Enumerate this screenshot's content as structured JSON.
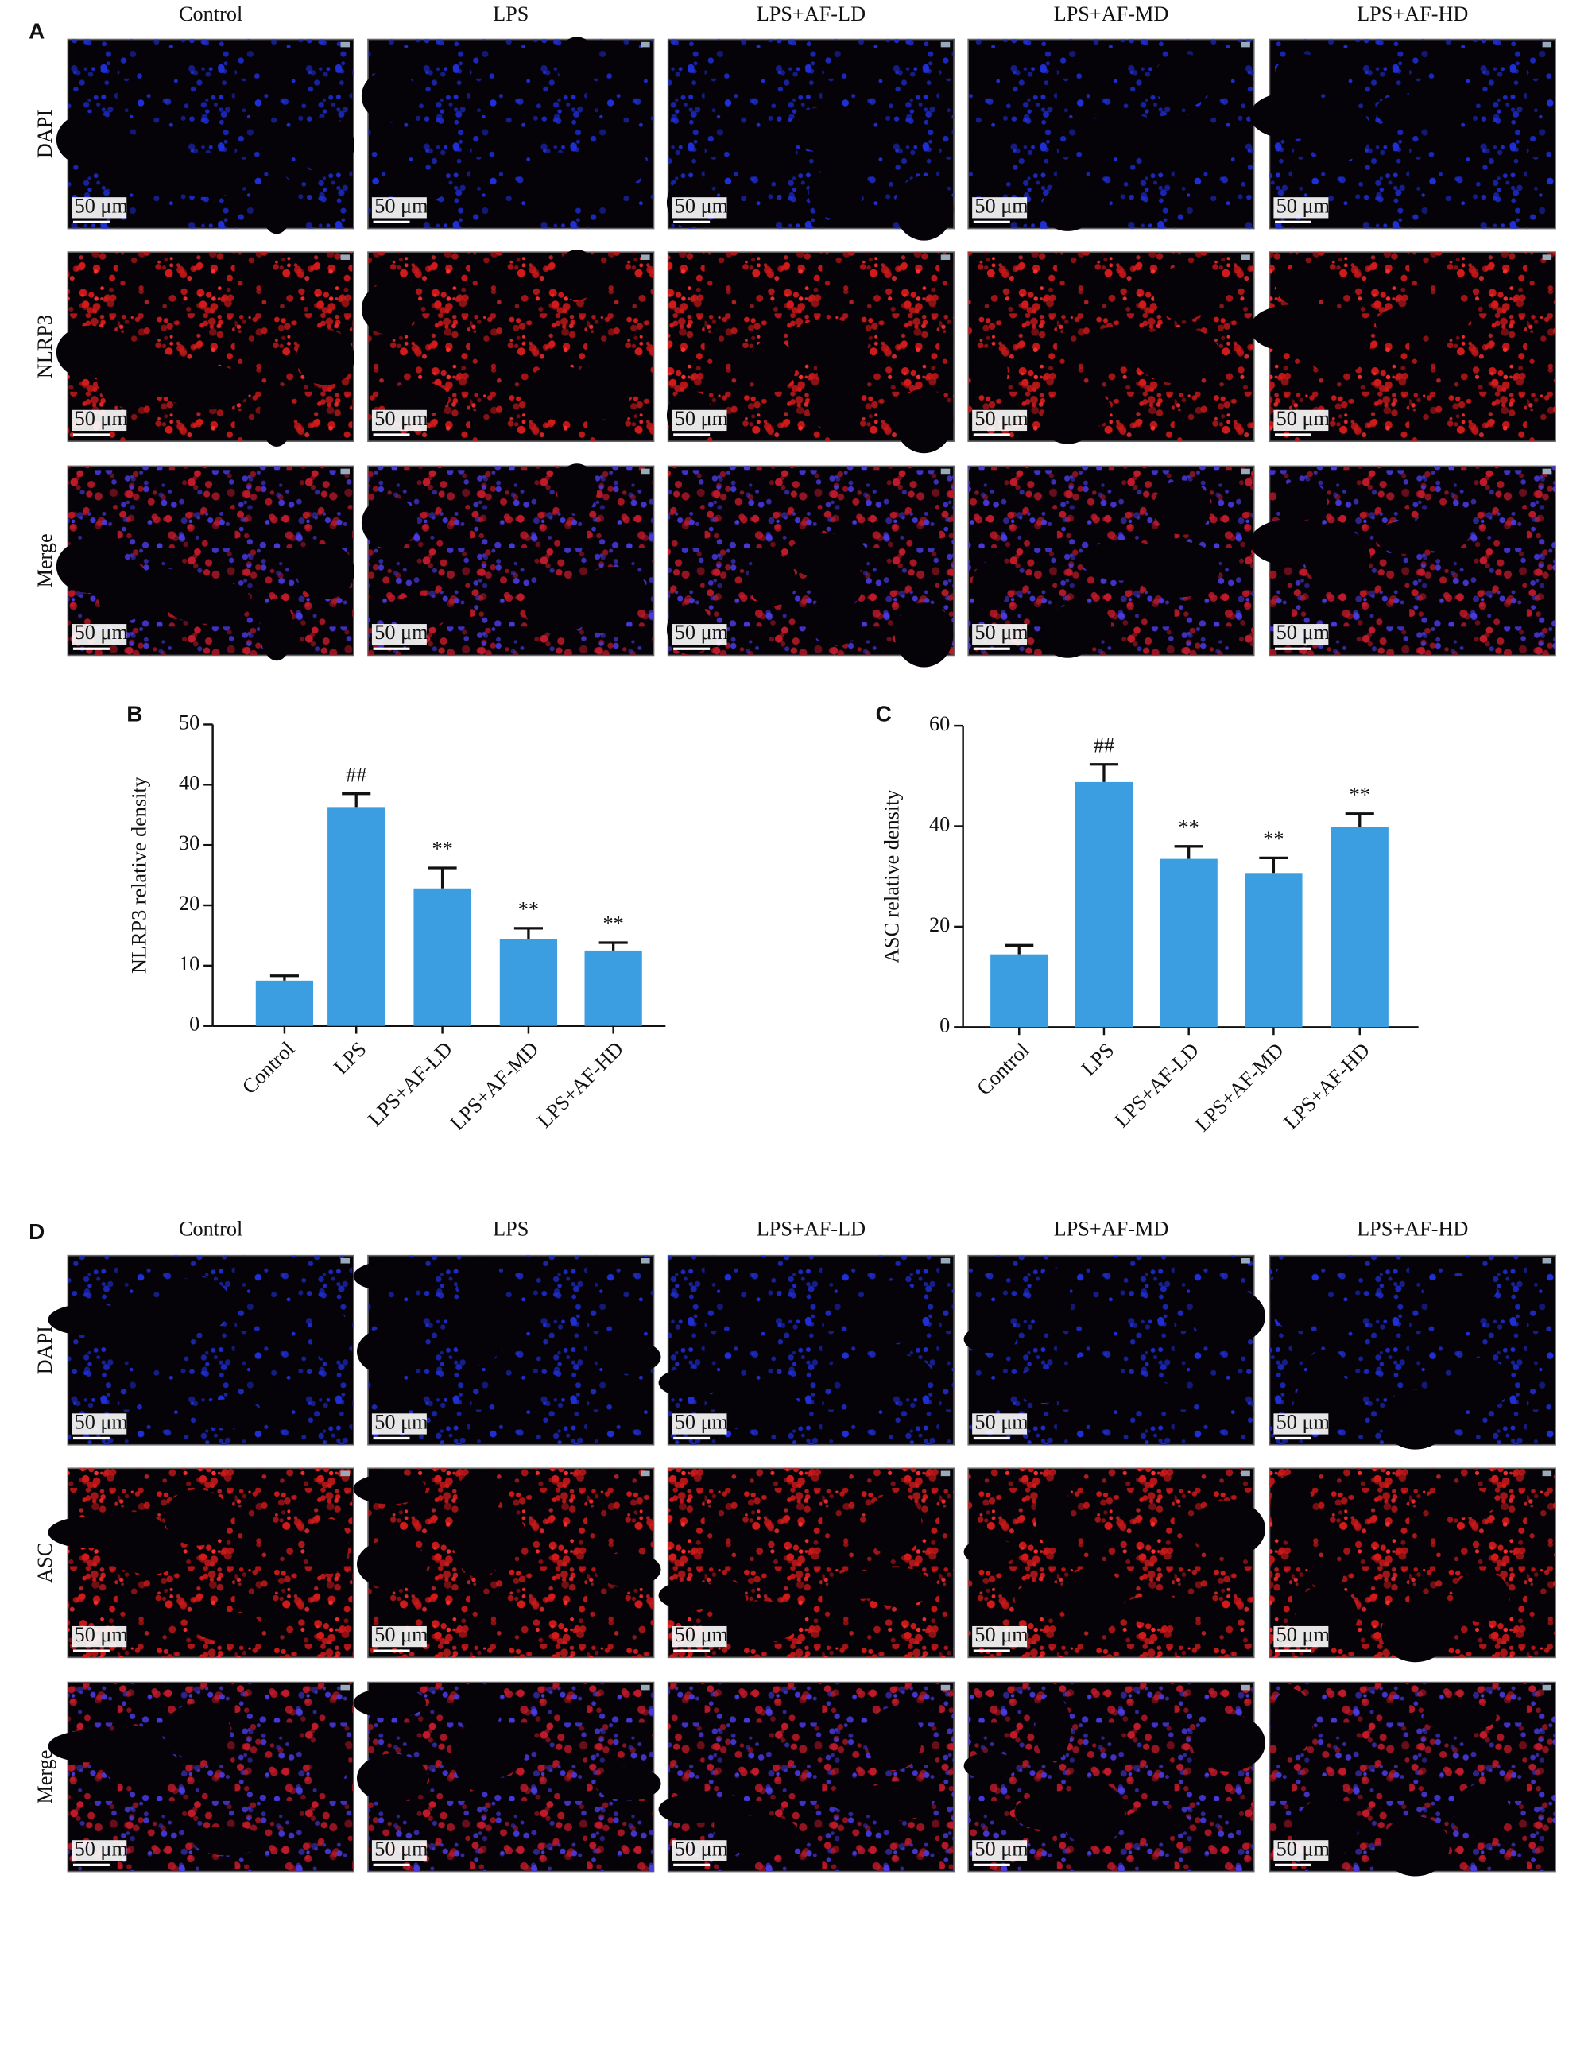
{
  "panels": [
    {
      "letter": "A",
      "columns": [
        "Control",
        "LPS",
        "LPS+AF-LD",
        "LPS+AF-MD",
        "LPS+AF-HD"
      ],
      "rows": [
        "DAPI",
        "NLRP3",
        "Merge"
      ]
    },
    {
      "letter": "D",
      "columns": [
        "Control",
        "LPS",
        "LPS+AF-LD",
        "LPS+AF-MD",
        "LPS+AF-HD"
      ],
      "rows": [
        "DAPI",
        "ASC",
        "Merge"
      ]
    }
  ],
  "scale_bar": "50 μm",
  "chart_data": [
    {
      "type": "bar",
      "letter": "B",
      "y_label": "NLRP3 relative density",
      "categories": [
        "Control",
        "LPS",
        "LPS+AF-LD",
        "LPS+AF-MD",
        "LPS+AF-HD"
      ],
      "values": [
        7.5,
        36.3,
        22.8,
        14.4,
        12.5
      ],
      "errors": [
        0.8,
        2.2,
        3.4,
        1.8,
        1.3
      ],
      "annotations": [
        null,
        "##",
        "**",
        "**",
        "**"
      ],
      "color": "#3a9ee0",
      "ylim": [
        0,
        50
      ],
      "yticks": [
        0,
        10,
        20,
        30,
        40,
        50
      ]
    },
    {
      "type": "bar",
      "letter": "C",
      "y_label": "ASC relative density",
      "categories": [
        "Control",
        "LPS",
        "LPS+AF-LD",
        "LPS+AF-MD",
        "LPS+AF-HD"
      ],
      "values": [
        14.5,
        48.8,
        33.5,
        30.7,
        39.8
      ],
      "errors": [
        1.8,
        3.5,
        2.5,
        3.0,
        2.7
      ],
      "annotations": [
        null,
        "##",
        "**",
        "**",
        "**"
      ],
      "color": "#3a9ee0",
      "ylim": [
        0,
        60
      ],
      "yticks": [
        0,
        20,
        40,
        60
      ]
    }
  ]
}
